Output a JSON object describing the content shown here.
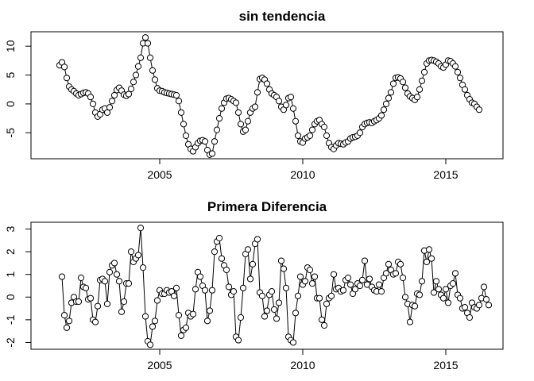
{
  "chart_data": [
    {
      "type": "line",
      "title": "sin tendencia",
      "xlabel": "",
      "ylabel": "",
      "xlim": [
        2000.5,
        2017.0
      ],
      "ylim": [
        -9.5,
        12.5
      ],
      "x_ticks": [
        2005,
        2010,
        2015
      ],
      "x_tick_labels": [
        "2005",
        "2010",
        "2015"
      ],
      "y_ticks": [
        -5,
        0,
        5,
        10
      ],
      "y_tick_labels": [
        "-5",
        "0",
        "5",
        "10"
      ],
      "grid": false,
      "x_start": 2001.5,
      "x_step": 0.0833333,
      "values": [
        6.7,
        7.2,
        6.4,
        4.5,
        3.0,
        2.5,
        2.2,
        1.8,
        1.5,
        1.7,
        1.9,
        2.0,
        1.8,
        1.2,
        0.0,
        -1.5,
        -2.2,
        -1.8,
        -1.0,
        -0.8,
        -1.5,
        -0.6,
        0.5,
        1.5,
        2.4,
        2.8,
        2.3,
        1.6,
        1.4,
        1.7,
        2.6,
        3.8,
        5.0,
        6.5,
        8.0,
        10.5,
        11.5,
        10.5,
        8.0,
        5.8,
        4.2,
        2.7,
        2.3,
        2.2,
        2.0,
        1.9,
        1.8,
        1.7,
        1.6,
        1.5,
        0.5,
        -1.5,
        -3.5,
        -5.5,
        -7.0,
        -7.8,
        -8.2,
        -7.5,
        -6.8,
        -6.4,
        -6.3,
        -6.5,
        -8.0,
        -8.8,
        -8.6,
        -6.5,
        -4.5,
        -2.5,
        -0.8,
        0.2,
        0.9,
        1.0,
        0.8,
        0.5,
        0.2,
        -1.5,
        -3.5,
        -4.8,
        -4.5,
        -3.0,
        -1.5,
        -0.8,
        -0.5,
        2.0,
        4.3,
        4.5,
        4.2,
        3.5,
        2.5,
        1.8,
        1.5,
        1.2,
        0.5,
        -0.5,
        -1.0,
        -0.2,
        1.0,
        1.2,
        -0.8,
        -3.0,
        -5.5,
        -6.5,
        -6.7,
        -6.0,
        -5.8,
        -5.5,
        -4.5,
        -3.5,
        -3.0,
        -2.8,
        -3.5,
        -4.0,
        -5.5,
        -6.8,
        -7.5,
        -7.8,
        -7.2,
        -6.8,
        -6.9,
        -7.0,
        -6.7,
        -6.5,
        -6.0,
        -5.8,
        -5.7,
        -5.5,
        -5.0,
        -4.0,
        -3.5,
        -3.3,
        -3.2,
        -3.3,
        -3.0,
        -2.8,
        -2.5,
        -2.0,
        -1.0,
        0.0,
        1.0,
        2.0,
        3.5,
        4.5,
        4.6,
        4.4,
        3.8,
        2.8,
        1.8,
        1.3,
        1.0,
        0.7,
        1.2,
        2.5,
        4.0,
        5.5,
        7.0,
        7.5,
        7.6,
        7.5,
        7.3,
        7.0,
        6.5,
        6.3,
        6.8,
        7.5,
        7.4,
        7.0,
        6.5,
        5.5,
        4.5,
        3.3,
        2.5,
        1.5,
        0.8,
        0.2,
        0.0,
        -0.5,
        -1.0
      ]
    },
    {
      "type": "line",
      "title": "Primera Diferencia",
      "xlabel": "",
      "ylabel": "",
      "xlim": [
        2000.5,
        2017.0
      ],
      "ylim": [
        -2.3,
        3.3
      ],
      "x_ticks": [
        2005,
        2010,
        2015
      ],
      "x_tick_labels": [
        "2005",
        "2010",
        "2015"
      ],
      "y_ticks": [
        -2,
        -1,
        0,
        1,
        2,
        3
      ],
      "y_tick_labels": [
        "-2",
        "-1",
        "0",
        "1",
        "2",
        "3"
      ],
      "grid": false,
      "x_start": 2001.5833,
      "x_step": 0.0833333,
      "values": [
        0.9,
        -0.8,
        -1.35,
        -1.05,
        -0.25,
        0.0,
        -0.2,
        -0.2,
        0.85,
        0.45,
        0.4,
        -0.1,
        -0.05,
        -1.0,
        -1.1,
        -0.4,
        0.75,
        0.8,
        0.7,
        -0.3,
        1.1,
        1.4,
        1.5,
        1.0,
        0.7,
        -0.65,
        -0.2,
        0.6,
        0.6,
        2.0,
        1.55,
        1.7,
        1.85,
        3.05,
        1.3,
        -0.85,
        -1.95,
        -2.1,
        -1.3,
        -1.05,
        -0.15,
        0.3,
        0.15,
        0.15,
        0.3,
        0.2,
        0.25,
        0.05,
        0.4,
        -0.8,
        -1.7,
        -1.45,
        -1.35,
        -0.7,
        -0.85,
        -0.75,
        0.35,
        1.1,
        0.9,
        0.5,
        0.3,
        -1.05,
        -0.6,
        0.3,
        2.0,
        2.45,
        2.6,
        1.7,
        1.4,
        1.2,
        0.45,
        0.1,
        0.25,
        -1.75,
        -1.9,
        -0.9,
        0.4,
        1.9,
        2.1,
        0.8,
        1.45,
        2.35,
        2.55,
        0.2,
        0.05,
        -0.85,
        -0.6,
        0.1,
        0.25,
        -0.55,
        -0.95,
        -0.25,
        1.6,
        1.25,
        0.4,
        -1.75,
        -1.9,
        -2.0,
        -0.7,
        0.05,
        0.9,
        0.55,
        0.7,
        1.3,
        1.2,
        0.6,
        0.9,
        -0.05,
        -0.05,
        -1.0,
        -1.25,
        -0.3,
        -0.05,
        0.05,
        1.0,
        0.35,
        0.4,
        0.25,
        0.3,
        0.75,
        0.85,
        0.55,
        0.15,
        0.35,
        0.6,
        0.5,
        0.75,
        1.6,
        0.55,
        0.8,
        0.45,
        0.3,
        0.25,
        0.55,
        0.25,
        0.85,
        1.05,
        1.45,
        1.2,
        1.0,
        1.05,
        1.55,
        1.45,
        0.85,
        0.0,
        -0.3,
        -1.1,
        -0.35,
        -0.4,
        0.15,
        0.1,
        0.7,
        2.05,
        1.55,
        2.1,
        1.7,
        0.2,
        0.7,
        0.35,
        0.1,
        -0.05,
        0.35,
        -0.25,
        0.5,
        0.6,
        1.05,
        0.1,
        -0.05,
        -0.5,
        -0.45,
        -0.7,
        -0.9,
        -0.25,
        -0.45,
        -0.5,
        -0.35,
        -0.05,
        0.45,
        -0.1,
        -0.35
      ]
    }
  ]
}
